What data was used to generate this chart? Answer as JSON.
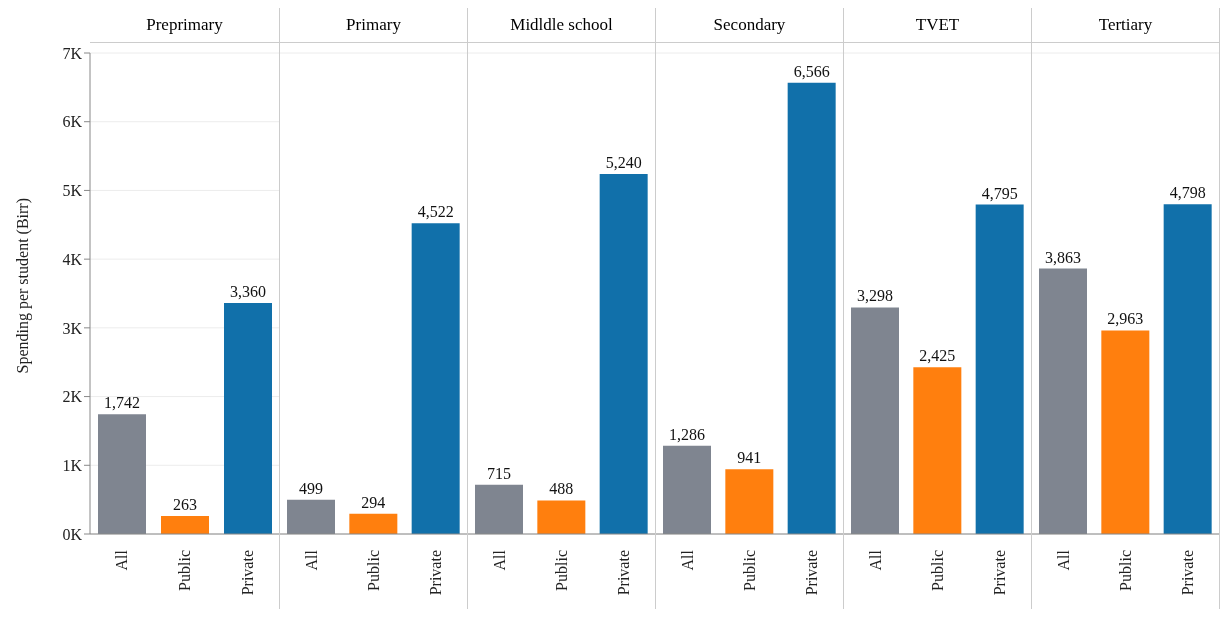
{
  "chart_data": [
    {
      "type": "bar",
      "title": "Preprimary",
      "ylabel": "Spending per student (Birr)",
      "categories": [
        "All",
        "Public",
        "Private"
      ],
      "values": [
        1742,
        263,
        3360
      ],
      "value_labels": [
        "1,742",
        "263",
        "3,360"
      ],
      "colors": [
        "#7f8590",
        "#ff7f0e",
        "#1170aa"
      ],
      "ylim": [
        0,
        7000
      ],
      "yticks": [
        {
          "value": 0,
          "label": "0K"
        },
        {
          "value": 1000,
          "label": "1K"
        },
        {
          "value": 2000,
          "label": "2K"
        },
        {
          "value": 3000,
          "label": "3K"
        },
        {
          "value": 4000,
          "label": "4K"
        },
        {
          "value": 5000,
          "label": "5K"
        },
        {
          "value": 6000,
          "label": "6K"
        },
        {
          "value": 7000,
          "label": "7K"
        }
      ],
      "grid": "y"
    },
    {
      "type": "bar",
      "title": "Primary",
      "categories": [
        "All",
        "Public",
        "Private"
      ],
      "values": [
        499,
        294,
        4522
      ],
      "value_labels": [
        "499",
        "294",
        "4,522"
      ],
      "colors": [
        "#7f8590",
        "#ff7f0e",
        "#1170aa"
      ],
      "ylim": [
        0,
        7000
      ],
      "grid": "y",
      "tick_labels": "x"
    },
    {
      "type": "bar",
      "title": "Midldle school",
      "categories": [
        "All",
        "Public",
        "Private"
      ],
      "values": [
        715,
        488,
        5240
      ],
      "value_labels": [
        "715",
        "488",
        "5,240"
      ],
      "colors": [
        "#7f8590",
        "#ff7f0e",
        "#1170aa"
      ],
      "ylim": [
        0,
        7000
      ],
      "grid": "y",
      "tick_labels": "x"
    },
    {
      "type": "bar",
      "title": "Secondary",
      "categories": [
        "All",
        "Public",
        "Private"
      ],
      "values": [
        1286,
        941,
        6566
      ],
      "value_labels": [
        "1,286",
        "941",
        "6,566"
      ],
      "colors": [
        "#7f8590",
        "#ff7f0e",
        "#1170aa"
      ],
      "ylim": [
        0,
        7000
      ],
      "grid": "y",
      "tick_labels": "x"
    },
    {
      "type": "bar",
      "title": "TVET",
      "categories": [
        "All",
        "Public",
        "Private"
      ],
      "values": [
        3298,
        2425,
        4795
      ],
      "value_labels": [
        "3,298",
        "2,425",
        "4,795"
      ],
      "colors": [
        "#7f8590",
        "#ff7f0e",
        "#1170aa"
      ],
      "ylim": [
        0,
        7000
      ],
      "grid": "y",
      "tick_labels": "x"
    },
    {
      "type": "bar",
      "title": "Tertiary",
      "categories": [
        "All",
        "Public",
        "Private"
      ],
      "values": [
        3863,
        2963,
        4798
      ],
      "value_labels": [
        "3,863",
        "2,963",
        "4,798"
      ],
      "colors": [
        "#7f8590",
        "#ff7f0e",
        "#1170aa"
      ],
      "ylim": [
        0,
        7000
      ],
      "grid": "y",
      "tick_labels": "x"
    }
  ]
}
